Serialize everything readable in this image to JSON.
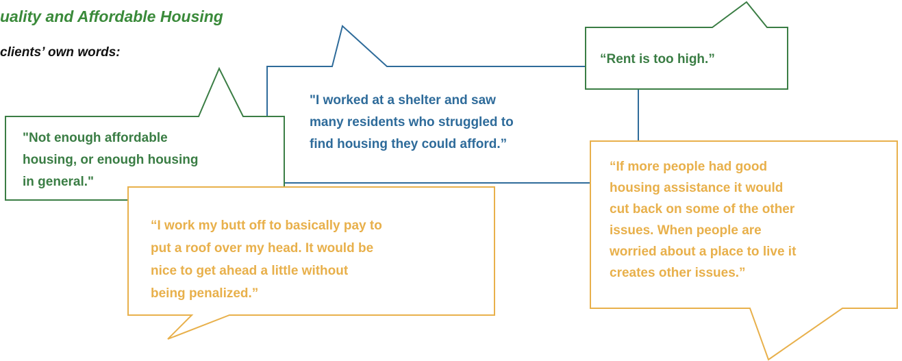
{
  "header": {
    "title": "uality and Affordable Housing",
    "subtitle": "clients’ own words:"
  },
  "bubbles": [
    {
      "lines": [
        "\"I worked at a shelter and saw",
        "many residents who struggled to",
        "find housing they could afford.”"
      ]
    },
    {
      "lines": [
        "“Rent is too high.”"
      ]
    },
    {
      "lines": [
        "“If more people had good",
        "housing assistance it would",
        "cut back on some of the other",
        "issues. When people are",
        "worried about a place to live it",
        "creates other issues.”"
      ]
    },
    {
      "lines": [
        "\"Not enough affordable",
        "housing, or enough housing",
        "in general.\""
      ]
    },
    {
      "lines": [
        "“I work my butt off to basically pay to",
        "put a roof over my head. It would be",
        "nice to get ahead a little without",
        "being penalized.”"
      ]
    }
  ]
}
